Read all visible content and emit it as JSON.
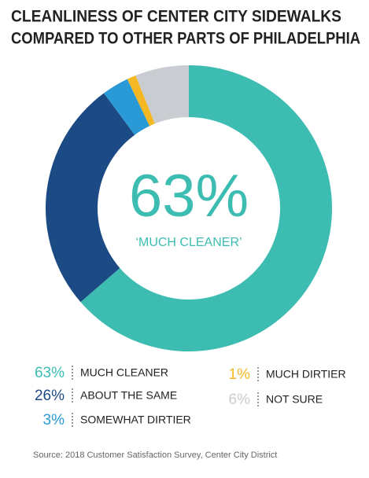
{
  "chart_data": {
    "type": "pie",
    "title": [
      "CLEANLINESS OF CENTER CITY SIDEWALKS",
      "COMPARED TO OTHER PARTS OF PHILADELPHIA"
    ],
    "categories": [
      "MUCH CLEANER",
      "ABOUT THE SAME",
      "SOMEWHAT DIRTIER",
      "MUCH DIRTIER",
      "NOT SURE"
    ],
    "values": [
      63,
      26,
      3,
      1,
      6
    ],
    "value_labels": [
      "63%",
      "26%",
      "3%",
      "1%",
      "6%"
    ],
    "colors": [
      "#3dbdb2",
      "#1b4a84",
      "#2a9ad6",
      "#f4b824",
      "#c9cdd1"
    ],
    "center_label": "‘MUCH CLEANER’",
    "source": "Source: 2018 Customer Satisfaction Survey, Center City District"
  }
}
